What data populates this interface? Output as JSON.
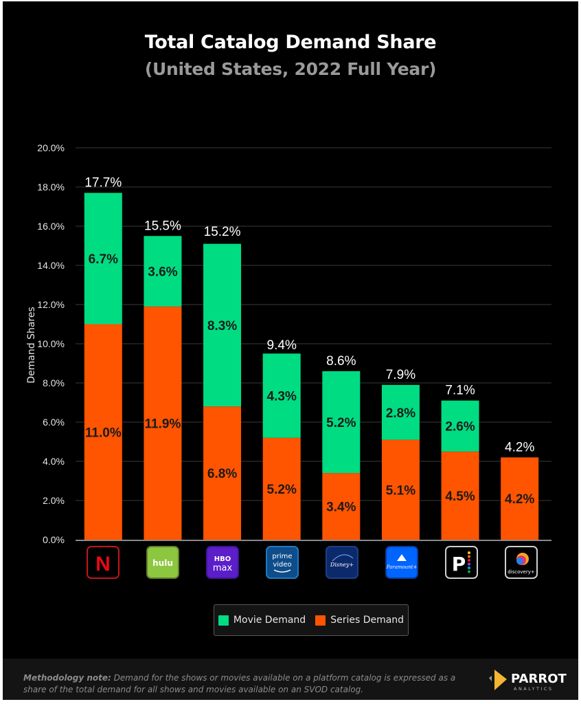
{
  "header": {
    "title": "Total Catalog Demand Share",
    "subtitle": "(United States, 2022 Full Year)"
  },
  "colors": {
    "background": "#000000",
    "movie": "#00dc82",
    "series": "#ff5400",
    "gridline": "#3a3a3a",
    "axis": "#8a8a8a"
  },
  "chart_data": {
    "type": "bar",
    "stacked": true,
    "title": "Total Catalog Demand Share",
    "subtitle": "(United States, 2022 Full Year)",
    "xlabel": "",
    "ylabel": "Demand Shares",
    "ylim": [
      0,
      20
    ],
    "yticks": [
      0,
      2,
      4,
      6,
      8,
      10,
      12,
      14,
      16,
      18,
      20
    ],
    "ytick_labels": [
      "0.0%",
      "2.0%",
      "4.0%",
      "6.0%",
      "8.0%",
      "10.0%",
      "12.0%",
      "14.0%",
      "16.0%",
      "18.0%",
      "20.0%"
    ],
    "grid": true,
    "categories": [
      "Netflix",
      "Hulu",
      "HBO Max",
      "Prime Video",
      "Disney+",
      "Paramount+",
      "Peacock",
      "discovery+"
    ],
    "category_icons": [
      "netflix-logo",
      "hulu-logo",
      "hbo-max-logo",
      "prime-video-logo",
      "disney-plus-logo",
      "paramount-plus-logo",
      "peacock-logo",
      "discovery-plus-logo"
    ],
    "series": [
      {
        "name": "Series Demand",
        "color": "#ff5400",
        "values": [
          11.0,
          11.9,
          6.8,
          5.2,
          3.4,
          5.1,
          4.5,
          4.2
        ],
        "labels": [
          "11.0%",
          "11.9%",
          "6.8%",
          "5.2%",
          "3.4%",
          "5.1%",
          "4.5%",
          "4.2%"
        ]
      },
      {
        "name": "Movie Demand",
        "color": "#00dc82",
        "values": [
          6.7,
          3.6,
          8.3,
          4.3,
          5.2,
          2.8,
          2.6,
          0.0
        ],
        "labels": [
          "6.7%",
          "3.6%",
          "8.3%",
          "4.3%",
          "5.2%",
          "2.8%",
          "2.6%",
          ""
        ]
      }
    ],
    "totals": [
      17.7,
      15.5,
      15.2,
      9.4,
      8.6,
      7.9,
      7.1,
      4.2
    ],
    "total_labels": [
      "17.7%",
      "15.5%",
      "15.2%",
      "9.4%",
      "8.6%",
      "7.9%",
      "7.1%",
      "4.2%"
    ],
    "legend": {
      "position": "bottom-center",
      "entries": [
        "Movie Demand",
        "Series Demand"
      ]
    }
  },
  "logos": {
    "netflix": "N",
    "hulu": "hulu",
    "hbo_top": "HBO",
    "hbo_bottom": "max",
    "prime_top": "prime",
    "prime_bottom": "video",
    "disney": "Disney+",
    "paramount": "Paramount+",
    "peacock": "P",
    "discovery": "discovery+"
  },
  "legend": {
    "movie": "Movie Demand",
    "series": "Series Demand"
  },
  "footer": {
    "note_label": "Methodology note:",
    "note_text": " Demand for the shows or movies available on a platform catalog is expressed as a share of the total demand for all shows and movies available on an SVOD catalog.",
    "brand_name": "PARROT",
    "brand_sub": "ANALYTICS"
  }
}
